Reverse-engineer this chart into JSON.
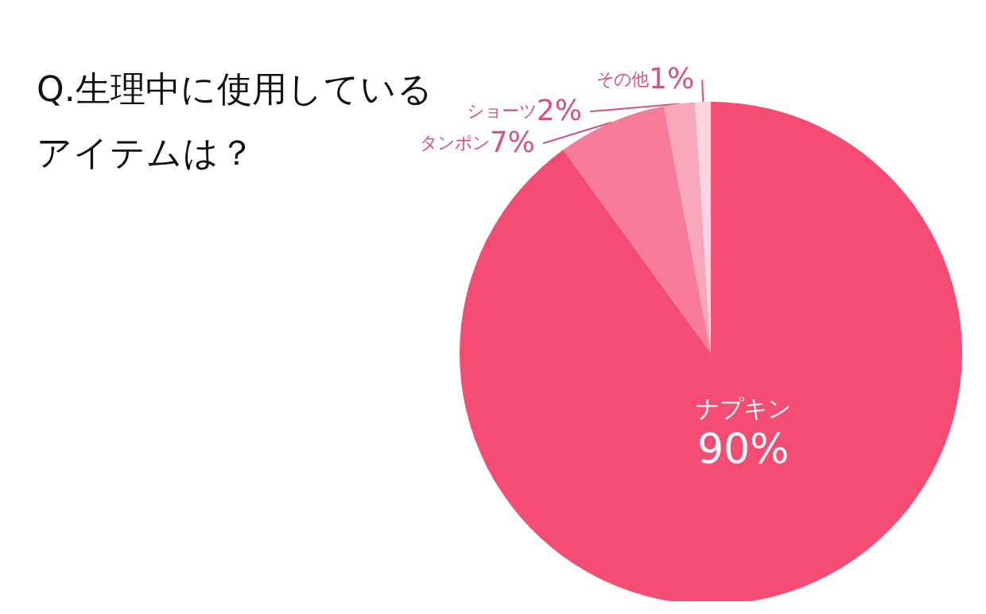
{
  "chart_data": {
    "type": "pie",
    "title": "Q.生理中に使用しているアイテムは？",
    "categories": [
      "ナプキン",
      "タンポン",
      "ショーツ",
      "その他"
    ],
    "values": [
      90,
      7,
      2,
      1
    ],
    "colors": [
      "#f54c74",
      "#f67c99",
      "#f9a7bb",
      "#fcd3de"
    ],
    "value_labels": [
      "90%",
      "7%",
      "2%",
      "1%"
    ],
    "legend": false
  }
}
